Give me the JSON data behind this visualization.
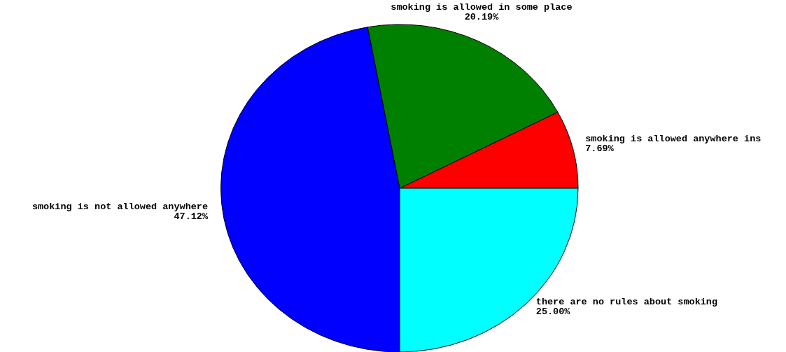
{
  "chart_data": {
    "type": "pie",
    "categories": [
      "smoking is allowed anywhere ins",
      "smoking is allowed in some place",
      "smoking is not allowed anywhere",
      "there are no rules about smoking"
    ],
    "values": [
      7.69,
      20.19,
      47.12,
      25.0
    ],
    "colors": [
      "#ff0000",
      "#008000",
      "#0000ff",
      "#00ffff"
    ],
    "value_labels": [
      "7.69%",
      "20.19%",
      "47.12%",
      "25.00%"
    ]
  }
}
